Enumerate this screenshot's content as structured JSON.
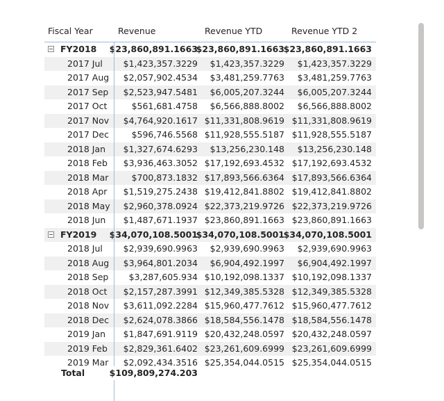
{
  "headers": {
    "fiscal_year": "Fiscal Year",
    "revenue": "Revenue",
    "revenue_ytd": "Revenue YTD",
    "revenue_ytd2": "Revenue YTD 2"
  },
  "rows": [
    {
      "type": "group",
      "label": "FY2018",
      "v1": "$23,860,891.1663",
      "v2": "$23,860,891.1663",
      "v3": "$23,860,891.1663"
    },
    {
      "type": "row",
      "label": "2017 Jul",
      "v1": "$1,423,357.3229",
      "v2": "$1,423,357.3229",
      "v3": "$1,423,357.3229"
    },
    {
      "type": "row",
      "label": "2017 Aug",
      "v1": "$2,057,902.4534",
      "v2": "$3,481,259.7763",
      "v3": "$3,481,259.7763"
    },
    {
      "type": "row",
      "label": "2017 Sep",
      "v1": "$2,523,947.5481",
      "v2": "$6,005,207.3244",
      "v3": "$6,005,207.3244"
    },
    {
      "type": "row",
      "label": "2017 Oct",
      "v1": "$561,681.4758",
      "v2": "$6,566,888.8002",
      "v3": "$6,566,888.8002"
    },
    {
      "type": "row",
      "label": "2017 Nov",
      "v1": "$4,764,920.1617",
      "v2": "$11,331,808.9619",
      "v3": "$11,331,808.9619"
    },
    {
      "type": "row",
      "label": "2017 Dec",
      "v1": "$596,746.5568",
      "v2": "$11,928,555.5187",
      "v3": "$11,928,555.5187"
    },
    {
      "type": "row",
      "label": "2018 Jan",
      "v1": "$1,327,674.6293",
      "v2": "$13,256,230.148",
      "v3": "$13,256,230.148"
    },
    {
      "type": "row",
      "label": "2018 Feb",
      "v1": "$3,936,463.3052",
      "v2": "$17,192,693.4532",
      "v3": "$17,192,693.4532"
    },
    {
      "type": "row",
      "label": "2018 Mar",
      "v1": "$700,873.1832",
      "v2": "$17,893,566.6364",
      "v3": "$17,893,566.6364"
    },
    {
      "type": "row",
      "label": "2018 Apr",
      "v1": "$1,519,275.2438",
      "v2": "$19,412,841.8802",
      "v3": "$19,412,841.8802"
    },
    {
      "type": "row",
      "label": "2018 May",
      "v1": "$2,960,378.0924",
      "v2": "$22,373,219.9726",
      "v3": "$22,373,219.9726"
    },
    {
      "type": "row",
      "label": "2018 Jun",
      "v1": "$1,487,671.1937",
      "v2": "$23,860,891.1663",
      "v3": "$23,860,891.1663"
    },
    {
      "type": "group",
      "label": "FY2019",
      "v1": "$34,070,108.5001",
      "v2": "$34,070,108.5001",
      "v3": "$34,070,108.5001"
    },
    {
      "type": "row",
      "label": "2018 Jul",
      "v1": "$2,939,690.9963",
      "v2": "$2,939,690.9963",
      "v3": "$2,939,690.9963"
    },
    {
      "type": "row",
      "label": "2018 Aug",
      "v1": "$3,964,801.2034",
      "v2": "$6,904,492.1997",
      "v3": "$6,904,492.1997"
    },
    {
      "type": "row",
      "label": "2018 Sep",
      "v1": "$3,287,605.934",
      "v2": "$10,192,098.1337",
      "v3": "$10,192,098.1337"
    },
    {
      "type": "row",
      "label": "2018 Oct",
      "v1": "$2,157,287.3991",
      "v2": "$12,349,385.5328",
      "v3": "$12,349,385.5328"
    },
    {
      "type": "row",
      "label": "2018 Nov",
      "v1": "$3,611,092.2284",
      "v2": "$15,960,477.7612",
      "v3": "$15,960,477.7612"
    },
    {
      "type": "row",
      "label": "2018 Dec",
      "v1": "$2,624,078.3866",
      "v2": "$18,584,556.1478",
      "v3": "$18,584,556.1478"
    },
    {
      "type": "row",
      "label": "2019 Jan",
      "v1": "$1,847,691.9119",
      "v2": "$20,432,248.0597",
      "v3": "$20,432,248.0597"
    },
    {
      "type": "row",
      "label": "2019 Feb",
      "v1": "$2,829,361.6402",
      "v2": "$23,261,609.6999",
      "v3": "$23,261,609.6999"
    },
    {
      "type": "row",
      "label": "2019 Mar",
      "v1": "$2,092,434.3516",
      "v2": "$25,354,044.0515",
      "v3": "$25,354,044.0515"
    }
  ],
  "total": {
    "label": "Total",
    "v1": "$109,809,274.203"
  },
  "icons": {
    "expander": "collapse-minus-icon"
  },
  "colors": {
    "header_border": "#9ebbd6",
    "alt_row": "#f0f0f0",
    "scrollbar": "#c8c6c4"
  }
}
